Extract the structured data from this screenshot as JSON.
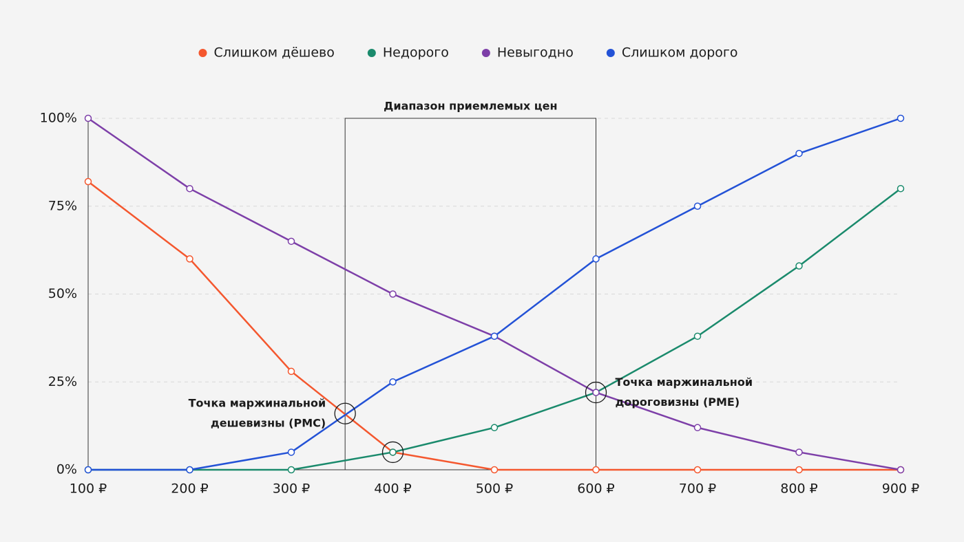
{
  "chart_data": {
    "type": "line",
    "x": [
      100,
      200,
      300,
      400,
      500,
      600,
      700,
      800,
      900
    ],
    "xlim": [
      100,
      900
    ],
    "xticks": [
      {
        "value": 100,
        "label": "100 ₽"
      },
      {
        "value": 200,
        "label": "200 ₽"
      },
      {
        "value": 300,
        "label": "300 ₽"
      },
      {
        "value": 400,
        "label": "400 ₽"
      },
      {
        "value": 500,
        "label": "500 ₽"
      },
      {
        "value": 600,
        "label": "600 ₽"
      },
      {
        "value": 700,
        "label": "700 ₽"
      },
      {
        "value": 800,
        "label": "800 ₽"
      },
      {
        "value": 900,
        "label": "900 ₽"
      }
    ],
    "ylim": [
      0,
      100
    ],
    "yticks": [
      {
        "value": 0,
        "label": "0%"
      },
      {
        "value": 25,
        "label": "25%"
      },
      {
        "value": 50,
        "label": "50%"
      },
      {
        "value": 75,
        "label": "75%"
      },
      {
        "value": 100,
        "label": "100%"
      }
    ],
    "grid": true,
    "legend": "top",
    "series": [
      {
        "name": "Слишком дёшево",
        "color": "#f4572e",
        "values": [
          82,
          60,
          28,
          5,
          0,
          0,
          0,
          0,
          0
        ]
      },
      {
        "name": "Недорого",
        "color": "#1a8a6c",
        "values": [
          0,
          0,
          0,
          5,
          12,
          22,
          38,
          58,
          80
        ]
      },
      {
        "name": "Невыгодно",
        "color": "#7d3fa8",
        "values": [
          100,
          80,
          65,
          50,
          38,
          22,
          12,
          5,
          0
        ]
      },
      {
        "name": "Слишком дорого",
        "color": "#2352d6",
        "values": [
          0,
          0,
          5,
          25,
          38,
          60,
          75,
          90,
          100
        ]
      }
    ],
    "annotations": [
      {
        "text": "Диапазон приемлемых цен",
        "x": [
          353,
          600
        ],
        "y": 100
      },
      {
        "text": [
          "Точка маржинальной",
          "дешевизны (PMC)"
        ],
        "x": 353,
        "y": 16
      },
      {
        "x": 400,
        "y": 5
      },
      {
        "text": [
          "Точка маржинальной",
          "дороговизны (PME)"
        ],
        "x": 600,
        "y": 22
      }
    ]
  }
}
